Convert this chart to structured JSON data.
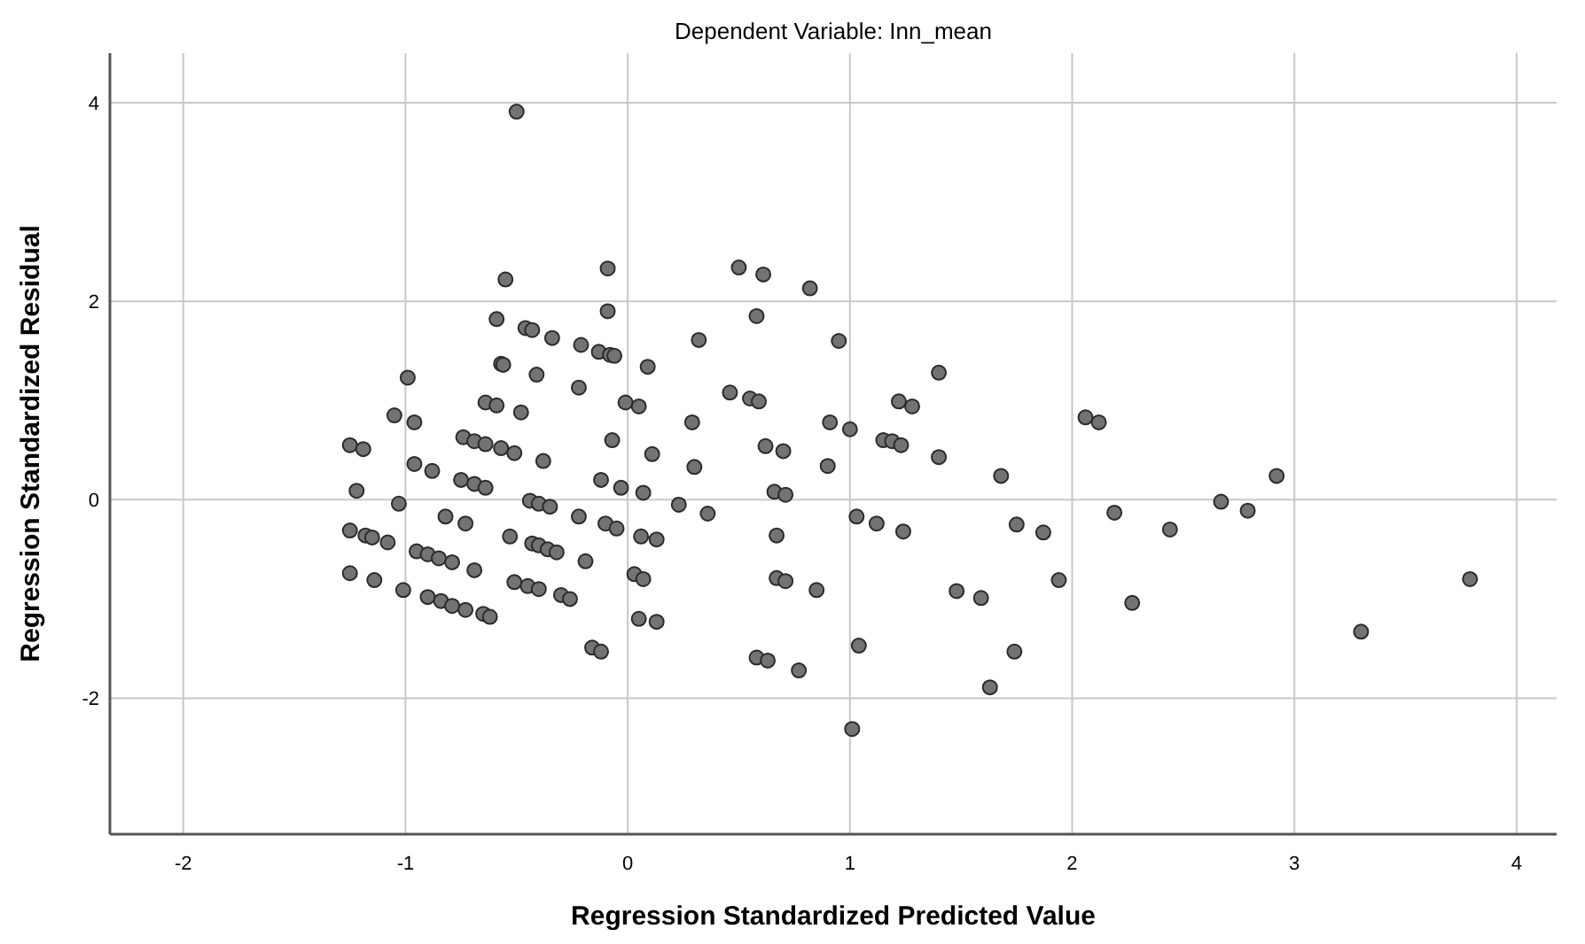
{
  "chart_data": {
    "type": "scatter",
    "title": "Dependent Variable: Inn_mean",
    "xlabel": "Regression Standardized Predicted Value",
    "ylabel": "Regression Standardized Residual",
    "xlim": [
      -2.33,
      4.18
    ],
    "ylim": [
      -3.37,
      4.5
    ],
    "xticks": [
      -2,
      -1,
      0,
      1,
      2,
      3,
      4
    ],
    "yticks": [
      -2,
      0,
      2,
      4
    ],
    "grid": true,
    "marker": "circle",
    "series": [
      {
        "color": "#737373",
        "x": [
          -0.99,
          -1.05,
          -0.96,
          -1.25,
          -1.19,
          -0.96,
          -0.88,
          -1.22,
          -1.03,
          -1.25,
          -1.18,
          -1.15,
          -1.08,
          -1.25,
          -1.14,
          -1.01,
          -0.95,
          -0.9,
          -0.85,
          -0.79,
          -0.69,
          -0.9,
          -0.84,
          -0.79,
          -0.73,
          -0.65,
          -0.62,
          -0.82,
          -0.73,
          -0.75,
          -0.69,
          -0.64,
          -0.74,
          -0.69,
          -0.64,
          -0.64,
          -0.55,
          -0.09,
          -0.09,
          -0.59,
          -0.46,
          -0.43,
          -0.34,
          -0.21,
          -0.13,
          -0.08,
          -0.06,
          0.32,
          -0.57,
          -0.56,
          -0.41,
          0.09,
          -0.22,
          -0.59,
          -0.48,
          -0.01,
          0.05,
          0.29,
          -0.07,
          0.11,
          0.3,
          -0.57,
          -0.51,
          -0.38,
          -0.12,
          -0.03,
          0.07,
          0.23,
          -0.44,
          -0.4,
          -0.35,
          -0.22,
          -0.1,
          -0.05,
          -0.53,
          0.06,
          0.13,
          -0.43,
          -0.4,
          -0.36,
          -0.32,
          -0.19,
          0.03,
          0.07,
          -0.51,
          -0.45,
          -0.4,
          -0.3,
          -0.26,
          0.05,
          0.13,
          -0.16,
          -0.12,
          0.5,
          0.61,
          0.82,
          0.58,
          0.95,
          1.4,
          0.46,
          0.55,
          0.59,
          1.22,
          1.28,
          0.91,
          1.0,
          1.15,
          1.19,
          1.23,
          1.4,
          0.62,
          0.7,
          0.9,
          0.66,
          0.71,
          0.36,
          1.03,
          1.12,
          1.24,
          0.67,
          0.67,
          0.71,
          0.85,
          1.48,
          1.04,
          0.58,
          0.63,
          0.77,
          1.01,
          2.06,
          2.12,
          1.68,
          2.92,
          2.19,
          2.67,
          2.79,
          1.75,
          1.87,
          2.44,
          1.59,
          1.94,
          2.27,
          3.79,
          3.3,
          1.74,
          1.63,
          -0.5
        ],
        "values": [
          1.23,
          0.85,
          0.78,
          0.55,
          0.51,
          0.36,
          0.29,
          0.09,
          -0.04,
          -0.31,
          -0.36,
          -0.38,
          -0.43,
          -0.74,
          -0.81,
          -0.91,
          -0.52,
          -0.55,
          -0.59,
          -0.63,
          -0.71,
          -0.98,
          -1.02,
          -1.07,
          -1.11,
          -1.15,
          -1.18,
          -0.17,
          -0.24,
          0.2,
          0.16,
          0.12,
          0.63,
          0.59,
          0.56,
          0.98,
          2.22,
          2.33,
          1.9,
          1.82,
          1.73,
          1.71,
          1.63,
          1.56,
          1.49,
          1.46,
          1.45,
          1.61,
          1.37,
          1.36,
          1.26,
          1.34,
          1.13,
          0.95,
          0.88,
          0.98,
          0.94,
          0.78,
          0.6,
          0.46,
          0.33,
          0.52,
          0.47,
          0.39,
          0.2,
          0.12,
          0.07,
          -0.05,
          -0.01,
          -0.04,
          -0.07,
          -0.17,
          -0.24,
          -0.29,
          -0.37,
          -0.37,
          -0.4,
          -0.44,
          -0.46,
          -0.5,
          -0.53,
          -0.62,
          -0.75,
          -0.8,
          -0.83,
          -0.87,
          -0.9,
          -0.96,
          -1.0,
          -1.2,
          -1.23,
          -1.49,
          -1.53,
          2.34,
          2.27,
          2.13,
          1.85,
          1.6,
          1.28,
          1.08,
          1.02,
          0.99,
          0.99,
          0.94,
          0.78,
          0.71,
          0.6,
          0.59,
          0.55,
          0.43,
          0.54,
          0.49,
          0.34,
          0.08,
          0.05,
          -0.14,
          -0.17,
          -0.24,
          -0.32,
          -0.36,
          -0.79,
          -0.82,
          -0.91,
          -0.92,
          -1.47,
          -1.59,
          -1.62,
          -1.72,
          -2.31,
          0.83,
          0.78,
          0.24,
          0.24,
          -0.13,
          -0.02,
          -0.11,
          -0.25,
          -0.33,
          -0.3,
          -0.99,
          -0.81,
          -1.04,
          -0.8,
          -1.33,
          -1.53,
          -1.89,
          3.91
        ]
      }
    ]
  }
}
